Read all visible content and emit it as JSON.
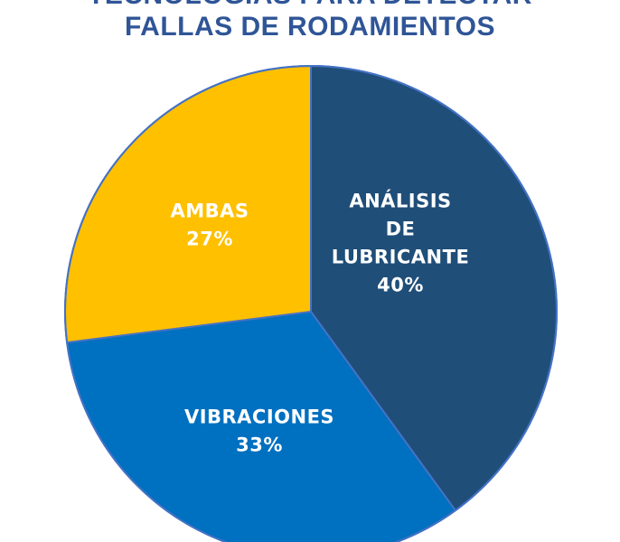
{
  "title": {
    "line1": "TECNOLOGÍAS PARA DETECTAR",
    "line2": "FALLAS DE RODAMIENTOS"
  },
  "chart_data": {
    "type": "pie",
    "start_angle_deg": 0,
    "direction": "clockwise",
    "slices": [
      {
        "label_lines": [
          "ANÁLISIS",
          "DE",
          "LUBRICANTE"
        ],
        "value": 40,
        "value_label": "40%",
        "color": "#1f4e79"
      },
      {
        "label_lines": [
          "VIBRACIONES"
        ],
        "value": 33,
        "value_label": "33%",
        "color": "#0070c0"
      },
      {
        "label_lines": [
          "AMBAS"
        ],
        "value": 27,
        "value_label": "27%",
        "color": "#ffc000"
      }
    ],
    "edge_color": "#4472c4"
  }
}
